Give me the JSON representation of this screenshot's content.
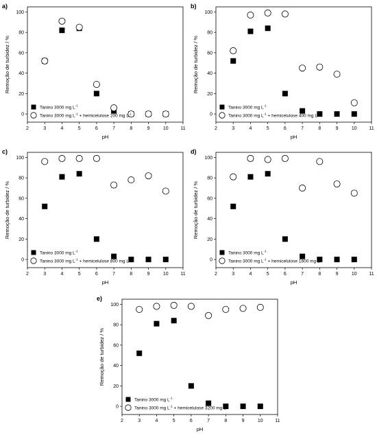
{
  "chart_data": [
    {
      "type": "scatter",
      "panel_label": "a)",
      "xlabel": "pH",
      "ylabel": "Remoção de turbidez / %",
      "xlim": [
        2,
        11
      ],
      "ylim": [
        -8,
        105
      ],
      "xticks": [
        "2",
        "3",
        "4",
        "5",
        "6",
        "7",
        "8",
        "9",
        "10",
        "11"
      ],
      "yticks": [
        "0",
        "20",
        "40",
        "60",
        "80",
        "100"
      ],
      "legend_position": "bottom-left",
      "series": [
        {
          "name": "Tanino 3000 mg L",
          "name_sup": "-1",
          "name_rest": "",
          "marker": "filled-square",
          "x": [
            3,
            4,
            5,
            6,
            7,
            8,
            9,
            10
          ],
          "y": [
            52,
            82,
            84,
            20,
            3,
            0,
            0,
            0
          ]
        },
        {
          "name": "Tanino 3000 mg L",
          "name_sup": "-1",
          "name_rest": " + hemicelulose 200 mg L",
          "name_sup2": "-1",
          "marker": "open-circle",
          "x": [
            3,
            4,
            5,
            6,
            7,
            8,
            9,
            10
          ],
          "y": [
            52,
            91,
            85,
            29,
            6,
            0,
            0,
            0
          ]
        }
      ]
    },
    {
      "type": "scatter",
      "panel_label": "b)",
      "xlabel": "pH",
      "ylabel": "Remoção de turbidez / %",
      "xlim": [
        2,
        11
      ],
      "ylim": [
        -8,
        105
      ],
      "xticks": [
        "2",
        "3",
        "4",
        "5",
        "6",
        "7",
        "8",
        "9",
        "10",
        "11"
      ],
      "yticks": [
        "0",
        "20",
        "40",
        "60",
        "80",
        "100"
      ],
      "legend_position": "bottom-left",
      "series": [
        {
          "name": "Tanino 3000 mg L",
          "name_sup": "-1",
          "name_rest": "",
          "marker": "filled-square",
          "x": [
            3,
            4,
            5,
            6,
            7,
            8,
            9,
            10
          ],
          "y": [
            52,
            81,
            84,
            20,
            3,
            0,
            0,
            0
          ]
        },
        {
          "name": "Tanino 3000 mg L",
          "name_sup": "-1",
          "name_rest": " + hemicelulose 400 mg L",
          "name_sup2": "-1",
          "marker": "open-circle",
          "x": [
            3,
            4,
            5,
            6,
            7,
            8,
            9,
            10
          ],
          "y": [
            62,
            97,
            99,
            98,
            45,
            46,
            39,
            11
          ]
        }
      ]
    },
    {
      "type": "scatter",
      "panel_label": "c)",
      "xlabel": "pH",
      "ylabel": "Remoção de turbidez / %",
      "xlim": [
        2,
        11
      ],
      "ylim": [
        -8,
        105
      ],
      "xticks": [
        "2",
        "3",
        "4",
        "5",
        "6",
        "7",
        "8",
        "9",
        "10",
        "11"
      ],
      "yticks": [
        "0",
        "20",
        "40",
        "60",
        "80",
        "100"
      ],
      "legend_position": "bottom-left",
      "series": [
        {
          "name": "Tanino 3000 mg L",
          "name_sup": "-1",
          "name_rest": "",
          "marker": "filled-square",
          "x": [
            3,
            4,
            5,
            6,
            7,
            8,
            9,
            10
          ],
          "y": [
            52,
            81,
            84,
            20,
            3,
            0,
            0,
            0
          ]
        },
        {
          "name": "Tanino 3000 mg L",
          "name_sup": "-1",
          "name_rest": " + hemicelulose 800 mg L",
          "name_sup2": "-1",
          "marker": "open-circle",
          "x": [
            3,
            4,
            5,
            6,
            7,
            8,
            9,
            10
          ],
          "y": [
            96,
            99,
            99,
            99,
            73,
            78,
            82,
            67
          ]
        }
      ]
    },
    {
      "type": "scatter",
      "panel_label": "d)",
      "xlabel": "pH",
      "ylabel": "Remoção de turbidez / %",
      "xlim": [
        2,
        11
      ],
      "ylim": [
        -8,
        105
      ],
      "xticks": [
        "2",
        "3",
        "4",
        "5",
        "6",
        "7",
        "8",
        "9",
        "10",
        "11"
      ],
      "yticks": [
        "0",
        "20",
        "40",
        "60",
        "80",
        "100"
      ],
      "legend_position": "bottom-left",
      "series": [
        {
          "name": "Tanino 3000 mg L",
          "name_sup": "-1",
          "name_rest": "",
          "marker": "filled-square",
          "x": [
            3,
            4,
            5,
            6,
            7,
            8,
            9,
            10
          ],
          "y": [
            52,
            81,
            84,
            20,
            3,
            0,
            0,
            0
          ]
        },
        {
          "name": "Tanino 3000 mg L",
          "name_sup": "-1",
          "name_rest": " + hemicelulose 1600 mg L",
          "name_sup2": "-1",
          "marker": "open-circle",
          "x": [
            3,
            4,
            5,
            6,
            7,
            8,
            9,
            10
          ],
          "y": [
            81,
            99,
            98,
            99,
            70,
            96,
            74,
            65
          ]
        }
      ]
    },
    {
      "type": "scatter",
      "panel_label": "e)",
      "xlabel": "pH",
      "ylabel": "Remoção de turbidez / %",
      "xlim": [
        2,
        11
      ],
      "ylim": [
        -8,
        105
      ],
      "xticks": [
        "2",
        "3",
        "4",
        "5",
        "6",
        "7",
        "8",
        "9",
        "10",
        "11"
      ],
      "yticks": [
        "0",
        "20",
        "40",
        "60",
        "80",
        "100"
      ],
      "legend_position": "bottom-left",
      "series": [
        {
          "name": "Tanino 3000 mg L",
          "name_sup": "-1",
          "name_rest": "",
          "marker": "filled-square",
          "x": [
            3,
            4,
            5,
            6,
            7,
            8,
            9,
            10
          ],
          "y": [
            52,
            81,
            84,
            20,
            3,
            0,
            0,
            0
          ]
        },
        {
          "name": "Tanino 3000 mg L",
          "name_sup": "-1",
          "name_rest": " + hemicelulose 3200 mg L",
          "name_sup2": "-1",
          "marker": "open-circle",
          "x": [
            3,
            4,
            5,
            6,
            7,
            8,
            9,
            10
          ],
          "y": [
            95,
            98,
            99,
            98,
            89,
            95,
            96,
            97
          ]
        }
      ]
    }
  ]
}
